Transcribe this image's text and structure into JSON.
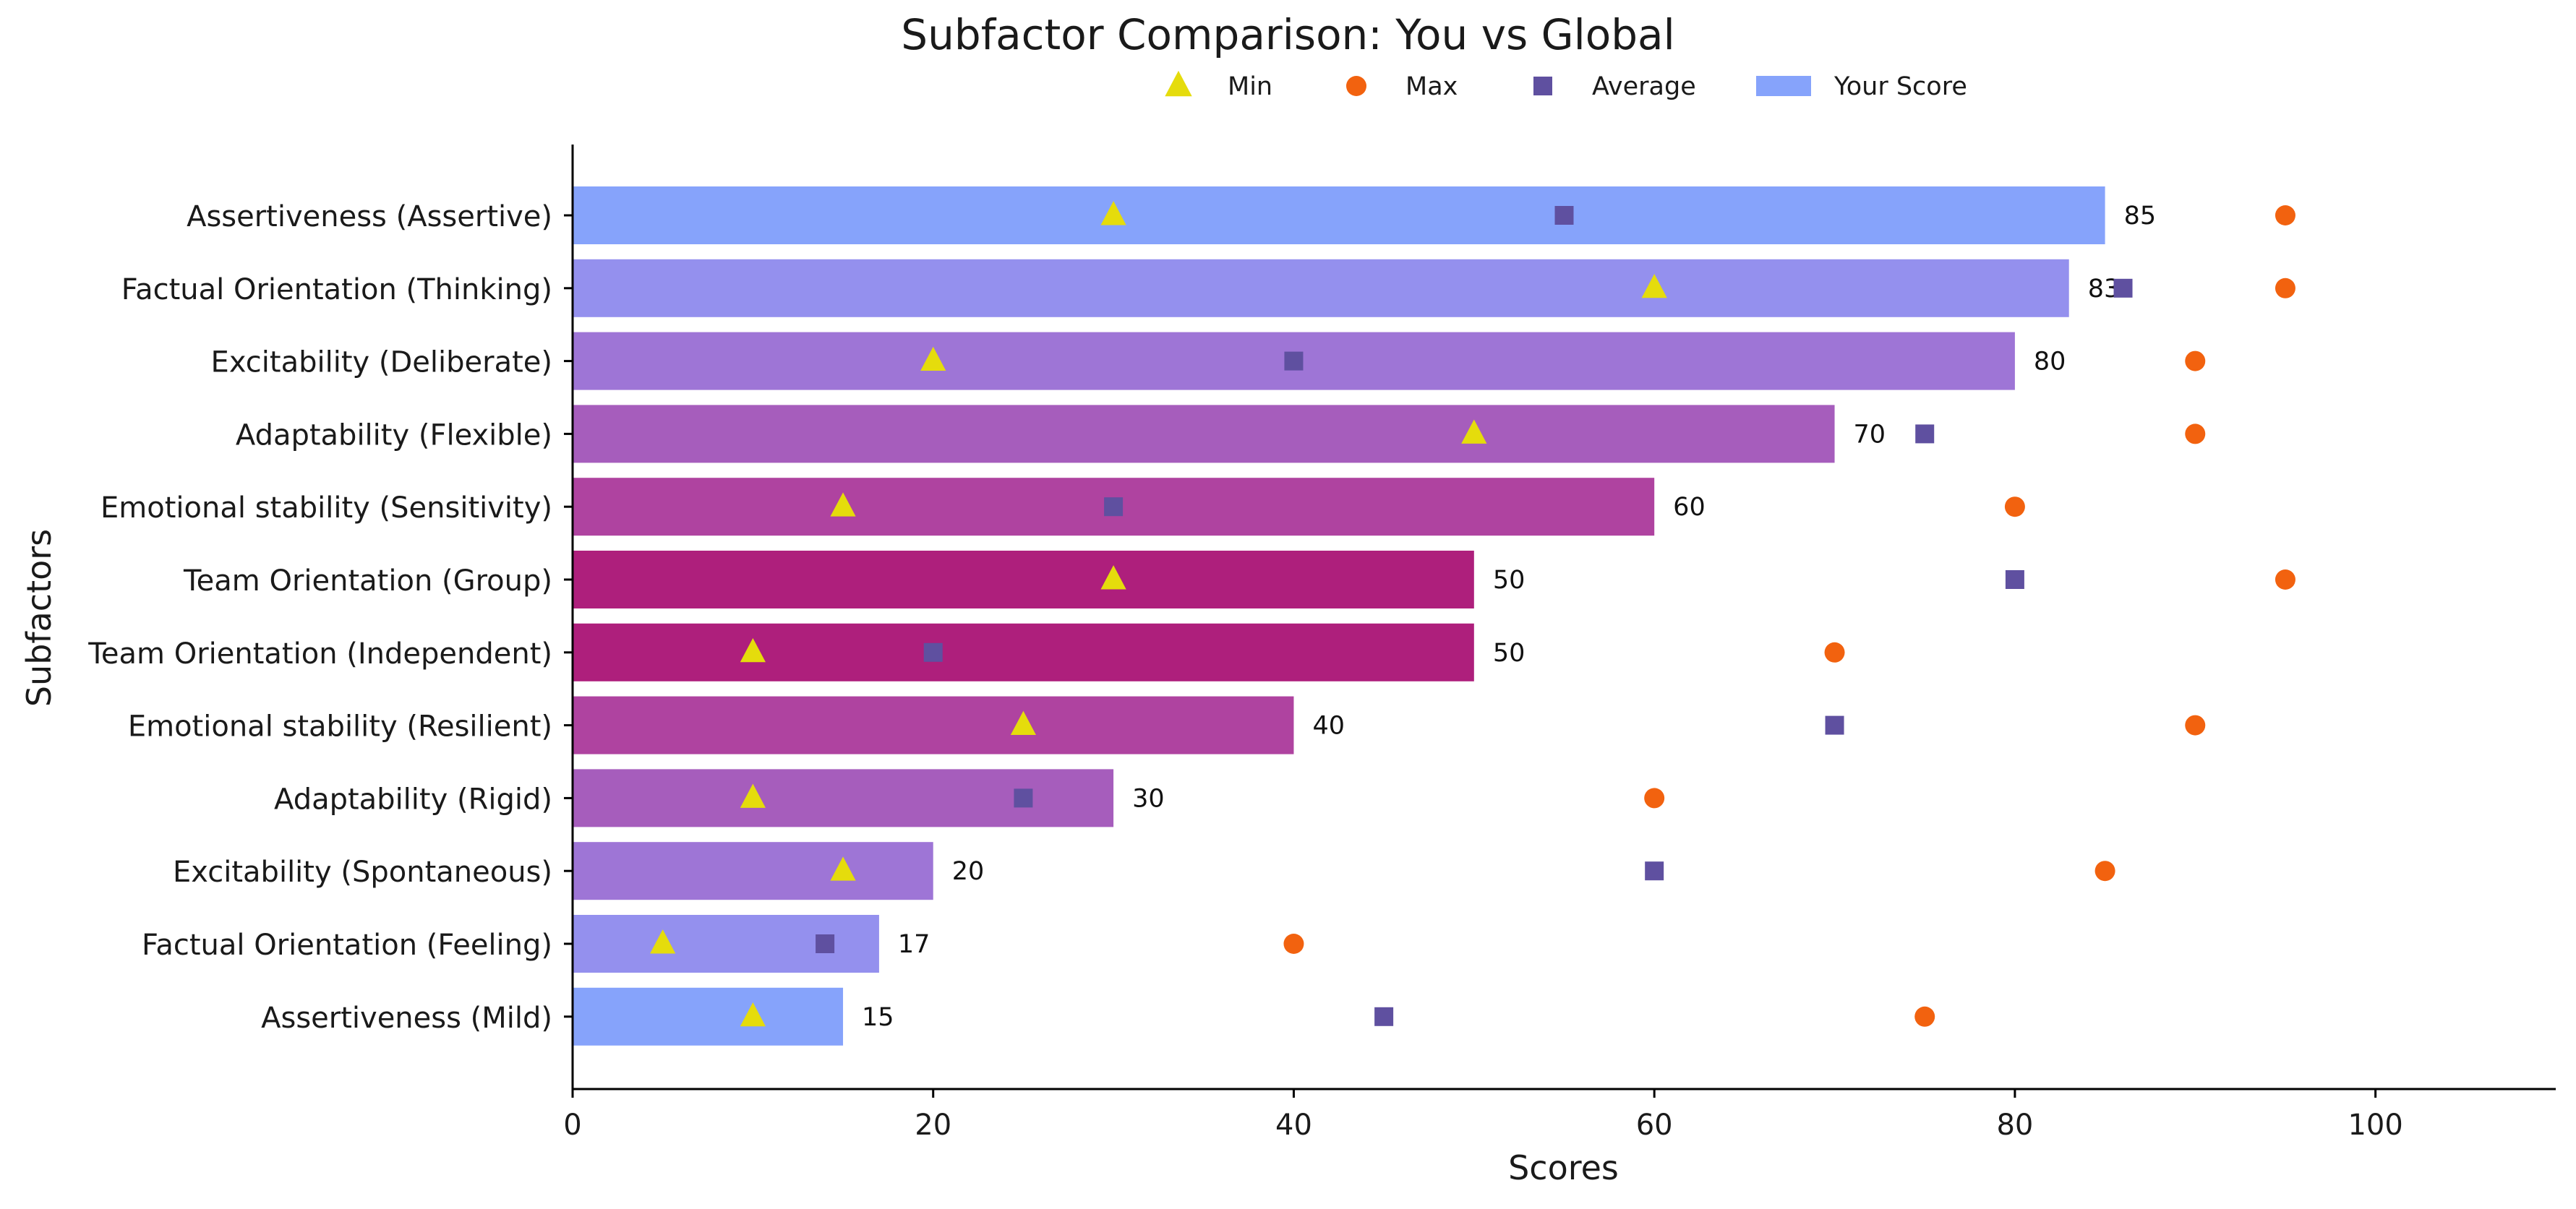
{
  "chart_data": {
    "type": "bar",
    "orientation": "horizontal",
    "title": "Subfactor Comparison: You vs Global",
    "xlabel": "Scores",
    "ylabel": "Subfactors",
    "xlim": [
      0,
      110
    ],
    "xticks": [
      0,
      20,
      40,
      60,
      80,
      100
    ],
    "grid": false,
    "legend_position": "top-center",
    "legend": [
      {
        "label": "Min",
        "marker": "triangle",
        "color": "#E5DC0C"
      },
      {
        "label": "Max",
        "marker": "circle",
        "color": "#F2620F"
      },
      {
        "label": "Average",
        "marker": "square",
        "color": "#5F50A0"
      },
      {
        "label": "Your Score",
        "marker": "bar",
        "color": "#86A3FB"
      }
    ],
    "categories": [
      "Assertiveness (Assertive)",
      "Factual Orientation (Thinking)",
      "Excitability (Deliberate)",
      "Adaptability (Flexible)",
      "Emotional stability (Sensitivity)",
      "Team Orientation (Group)",
      "Team Orientation (Independent)",
      "Emotional stability (Resilient)",
      "Adaptability (Rigid)",
      "Excitability (Spontaneous)",
      "Factual Orientation (Feeling)",
      "Assertiveness (Mild)"
    ],
    "bar_colors": [
      "#86A3FB",
      "#9490EE",
      "#9E75D6",
      "#A65DBC",
      "#AF43A0",
      "#AE1F7C",
      "#AE1F7C",
      "#AF43A0",
      "#A65DBC",
      "#9E75D6",
      "#9490EE",
      "#86A3FB"
    ],
    "series": [
      {
        "name": "Your Score",
        "values": [
          85,
          83,
          80,
          70,
          60,
          50,
          50,
          40,
          30,
          20,
          17,
          15
        ]
      },
      {
        "name": "Min",
        "values": [
          30,
          60,
          20,
          50,
          15,
          30,
          10,
          25,
          10,
          15,
          5,
          10
        ]
      },
      {
        "name": "Max",
        "values": [
          95,
          95,
          90,
          90,
          80,
          95,
          70,
          90,
          60,
          85,
          40,
          75
        ]
      },
      {
        "name": "Average",
        "values": [
          55,
          86,
          40,
          75,
          30,
          80,
          20,
          70,
          25,
          60,
          14,
          45
        ]
      }
    ]
  }
}
